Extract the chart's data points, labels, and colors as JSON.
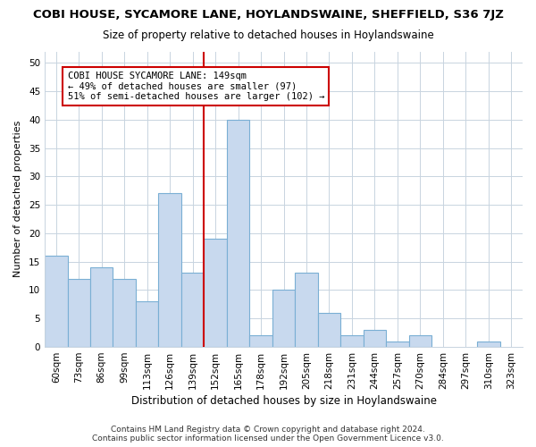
{
  "title": "COBI HOUSE, SYCAMORE LANE, HOYLANDSWAINE, SHEFFIELD, S36 7JZ",
  "subtitle": "Size of property relative to detached houses in Hoylandswaine",
  "xlabel": "Distribution of detached houses by size in Hoylandswaine",
  "ylabel": "Number of detached properties",
  "footer_line1": "Contains HM Land Registry data © Crown copyright and database right 2024.",
  "footer_line2": "Contains public sector information licensed under the Open Government Licence v3.0.",
  "bin_labels": [
    "60sqm",
    "73sqm",
    "86sqm",
    "99sqm",
    "113sqm",
    "126sqm",
    "139sqm",
    "152sqm",
    "165sqm",
    "178sqm",
    "192sqm",
    "205sqm",
    "218sqm",
    "231sqm",
    "244sqm",
    "257sqm",
    "270sqm",
    "284sqm",
    "297sqm",
    "310sqm",
    "323sqm"
  ],
  "bar_heights": [
    16,
    12,
    14,
    12,
    8,
    27,
    13,
    19,
    40,
    2,
    10,
    13,
    6,
    2,
    3,
    1,
    2,
    0,
    0,
    1,
    0
  ],
  "bar_color": "#c8d9ee",
  "bar_edge_color": "#7aafd4",
  "vline_color": "#cc0000",
  "annotation_title": "COBI HOUSE SYCAMORE LANE: 149sqm",
  "annotation_line2": "← 49% of detached houses are smaller (97)",
  "annotation_line3": "51% of semi-detached houses are larger (102) →",
  "annotation_box_color": "#ffffff",
  "annotation_box_edge": "#cc0000",
  "ylim": [
    0,
    52
  ],
  "yticks": [
    0,
    5,
    10,
    15,
    20,
    25,
    30,
    35,
    40,
    45,
    50
  ],
  "title_fontsize": 9.5,
  "subtitle_fontsize": 8.5,
  "xlabel_fontsize": 8.5,
  "ylabel_fontsize": 8,
  "tick_fontsize": 7.5,
  "annotation_fontsize": 7.5,
  "footer_fontsize": 6.5,
  "background_color": "#ffffff",
  "plot_background_color": "#ffffff",
  "grid_color": "#c8d4e0"
}
